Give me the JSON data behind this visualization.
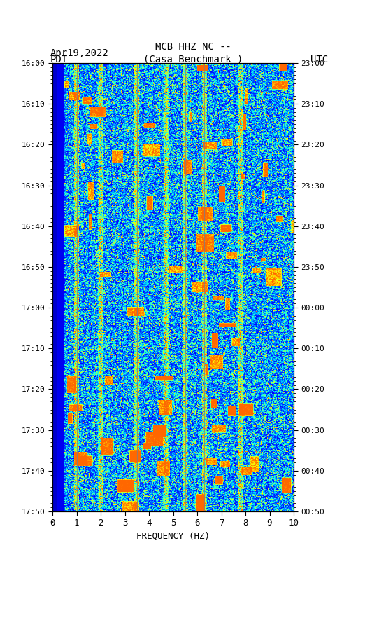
{
  "title_line1": "MCB HHZ NC --",
  "title_line2": "(Casa Benchmark )",
  "date_label": "Apr19,2022",
  "tz_left": "PDT",
  "tz_right": "UTC",
  "left_time_ticks": [
    "16:00",
    "16:10",
    "16:20",
    "16:30",
    "16:40",
    "16:50",
    "17:00",
    "17:10",
    "17:20",
    "17:30",
    "17:40",
    "17:50"
  ],
  "right_time_ticks": [
    "23:00",
    "23:10",
    "23:20",
    "23:30",
    "23:40",
    "23:50",
    "00:00",
    "00:10",
    "00:20",
    "00:30",
    "00:40",
    "00:50"
  ],
  "freq_ticks": [
    0,
    1,
    2,
    3,
    4,
    5,
    6,
    7,
    8,
    9,
    10
  ],
  "freq_label": "FREQUENCY (HZ)",
  "freq_min": 0,
  "freq_max": 10,
  "time_min": 0,
  "time_max": 110,
  "vertical_lines_freq": [
    1.0,
    2.0,
    3.5,
    4.7,
    5.5,
    6.3,
    7.8
  ],
  "blue_strip_freq": 0.5,
  "background_color": "#ffffff",
  "spectrogram_base_color": "#cc0000",
  "colormap": "jet",
  "fig_width": 5.52,
  "fig_height": 8.92,
  "dpi": 100
}
